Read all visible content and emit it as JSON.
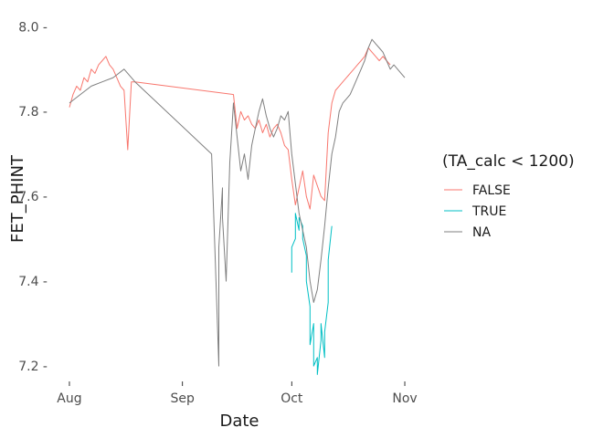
{
  "chart_data": {
    "type": "line",
    "xlabel": "Date",
    "ylabel": "FET_PHINT",
    "x_axis": {
      "ticks": [
        "Aug",
        "Sep",
        "Oct",
        "Nov"
      ],
      "tick_dates": [
        "2021-08-01",
        "2021-09-01",
        "2021-10-01",
        "2021-11-01"
      ]
    },
    "y_axis": {
      "range": [
        7.17,
        8.02
      ],
      "ticks": [
        7.2,
        7.4,
        7.6,
        7.8,
        8.0
      ],
      "tick_labels": [
        "7.2 -",
        "7.4 -",
        "7.6 -",
        "7.8 -",
        "8.0 -"
      ]
    },
    "grid": false,
    "legend": {
      "title": "(TA_calc < 1200)",
      "placement": "right",
      "entries": [
        "FALSE",
        "TRUE",
        "NA"
      ]
    },
    "series": [
      {
        "name": "FALSE",
        "color": "#F8766D",
        "x": [
          "2021-08-01",
          "2021-08-02",
          "2021-08-03",
          "2021-08-04",
          "2021-08-05",
          "2021-08-06",
          "2021-08-07",
          "2021-08-08",
          "2021-08-09",
          "2021-08-10",
          "2021-08-11",
          "2021-08-12",
          "2021-08-13",
          "2021-08-14",
          "2021-08-15",
          "2021-08-16",
          "2021-08-17",
          "2021-08-18",
          "2021-08-19",
          "2021-09-15",
          "2021-09-16",
          "2021-09-17",
          "2021-09-18",
          "2021-09-19",
          "2021-09-20",
          "2021-09-21",
          "2021-09-22",
          "2021-09-23",
          "2021-09-24",
          "2021-09-25",
          "2021-09-26",
          "2021-09-27",
          "2021-09-28",
          "2021-09-29",
          "2021-09-30",
          "2021-10-01",
          "2021-10-02",
          "2021-10-03",
          "2021-10-04",
          "2021-10-05",
          "2021-10-06",
          "2021-10-07",
          "2021-10-09",
          "2021-10-10",
          "2021-10-11",
          "2021-10-12",
          "2021-10-13",
          "2021-10-14",
          "2021-10-15",
          "2021-10-16",
          "2021-10-17",
          "2021-10-18",
          "2021-10-19",
          "2021-10-20",
          "2021-10-21",
          "2021-10-22",
          "2021-10-23",
          "2021-10-24",
          "2021-10-25",
          "2021-10-26",
          "2021-10-27",
          "2021-10-28"
        ],
        "values": [
          7.81,
          7.84,
          7.86,
          7.85,
          7.88,
          7.87,
          7.9,
          7.89,
          7.91,
          7.92,
          7.93,
          7.91,
          7.9,
          7.88,
          7.86,
          7.85,
          7.71,
          7.87,
          7.87,
          7.84,
          7.76,
          7.8,
          7.78,
          7.79,
          7.77,
          7.76,
          7.78,
          7.75,
          7.77,
          7.74,
          7.76,
          7.77,
          7.75,
          7.72,
          7.71,
          7.64,
          7.58,
          7.62,
          7.66,
          7.6,
          7.57,
          7.65,
          7.6,
          7.59,
          7.75,
          7.82,
          7.85,
          7.86,
          7.87,
          7.88,
          7.89,
          7.9,
          7.91,
          7.92,
          7.93,
          7.95,
          7.94,
          7.93,
          7.92,
          7.93,
          7.92,
          7.91
        ]
      },
      {
        "name": "TRUE",
        "color": "#00BFC4",
        "x": [
          "2021-10-01",
          "2021-10-01",
          "2021-10-02",
          "2021-10-02",
          "2021-10-03",
          "2021-10-03",
          "2021-10-04",
          "2021-10-04",
          "2021-10-05",
          "2021-10-05",
          "2021-10-06",
          "2021-10-06",
          "2021-10-07",
          "2021-10-07",
          "2021-10-08",
          "2021-10-08",
          "2021-10-09",
          "2021-10-09",
          "2021-10-10",
          "2021-10-10",
          "2021-10-11",
          "2021-10-11",
          "2021-10-12"
        ],
        "values": [
          7.42,
          7.48,
          7.5,
          7.56,
          7.52,
          7.55,
          7.53,
          7.5,
          7.46,
          7.4,
          7.34,
          7.25,
          7.3,
          7.2,
          7.22,
          7.18,
          7.26,
          7.3,
          7.22,
          7.28,
          7.35,
          7.45,
          7.53
        ]
      },
      {
        "name": "NA",
        "color": "#7F7F7F",
        "x": [
          "2021-08-01",
          "2021-08-04",
          "2021-08-07",
          "2021-08-10",
          "2021-08-13",
          "2021-08-16",
          "2021-08-19",
          "2021-09-09",
          "2021-09-10",
          "2021-09-11",
          "2021-09-11",
          "2021-09-12",
          "2021-09-12",
          "2021-09-13",
          "2021-09-14",
          "2021-09-15",
          "2021-09-16",
          "2021-09-17",
          "2021-09-18",
          "2021-09-19",
          "2021-09-20",
          "2021-09-21",
          "2021-09-22",
          "2021-09-23",
          "2021-09-24",
          "2021-09-25",
          "2021-09-26",
          "2021-09-27",
          "2021-09-28",
          "2021-09-29",
          "2021-09-30",
          "2021-10-01",
          "2021-10-02",
          "2021-10-03",
          "2021-10-04",
          "2021-10-05",
          "2021-10-06",
          "2021-10-07",
          "2021-10-08",
          "2021-10-09",
          "2021-10-10",
          "2021-10-11",
          "2021-10-12",
          "2021-10-13",
          "2021-10-14",
          "2021-10-15",
          "2021-10-16",
          "2021-10-17",
          "2021-10-18",
          "2021-10-19",
          "2021-10-20",
          "2021-10-21",
          "2021-10-22",
          "2021-10-23",
          "2021-10-24",
          "2021-10-25",
          "2021-10-26",
          "2021-10-27",
          "2021-10-28",
          "2021-10-29",
          "2021-10-30",
          "2021-10-31",
          "2021-11-01"
        ],
        "values": [
          7.82,
          7.84,
          7.86,
          7.87,
          7.88,
          7.9,
          7.87,
          7.7,
          7.45,
          7.2,
          7.48,
          7.62,
          7.55,
          7.4,
          7.68,
          7.82,
          7.74,
          7.66,
          7.7,
          7.64,
          7.72,
          7.76,
          7.8,
          7.83,
          7.79,
          7.76,
          7.74,
          7.76,
          7.79,
          7.78,
          7.8,
          7.7,
          7.63,
          7.56,
          7.52,
          7.48,
          7.4,
          7.35,
          7.38,
          7.45,
          7.53,
          7.62,
          7.7,
          7.74,
          7.8,
          7.82,
          7.83,
          7.84,
          7.86,
          7.88,
          7.9,
          7.92,
          7.95,
          7.97,
          7.96,
          7.95,
          7.94,
          7.92,
          7.9,
          7.91,
          7.9,
          7.89,
          7.88
        ]
      }
    ]
  }
}
